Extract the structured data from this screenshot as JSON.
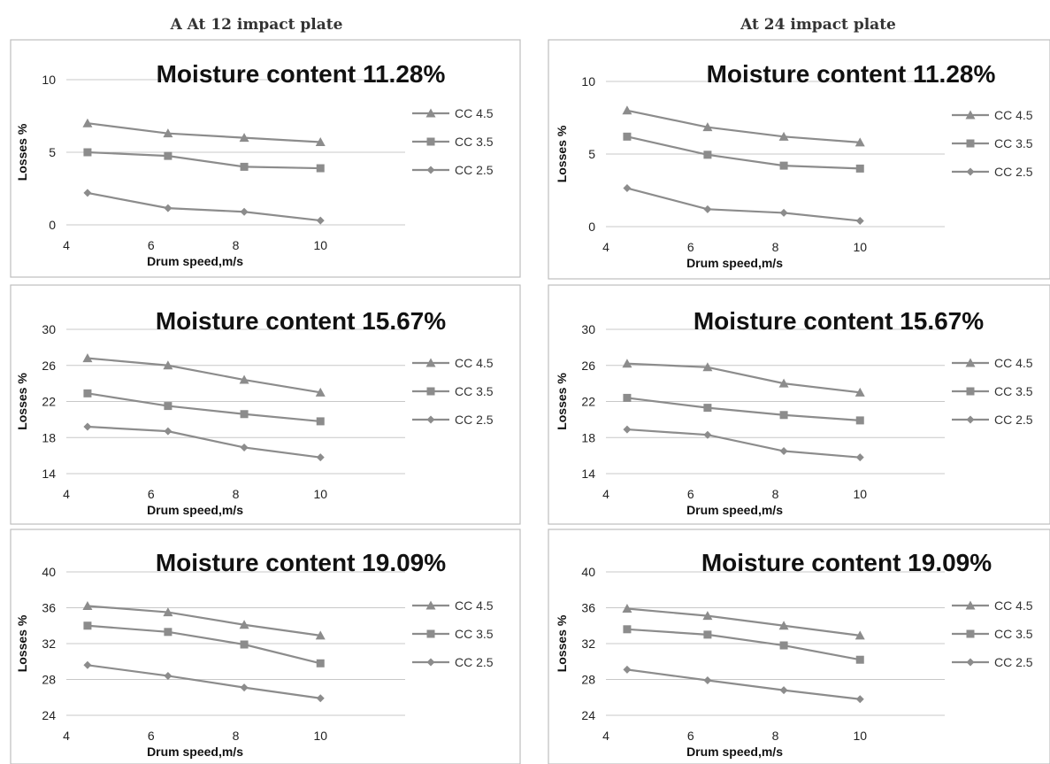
{
  "figure_columns": [
    {
      "title": "A At 12 impact plate"
    },
    {
      "title": "At 24 impact plate"
    }
  ],
  "chart_data": [
    {
      "type": "line",
      "title": "Moisture content 11.28%",
      "xlabel": "Drum speed,m/s",
      "ylabel": "Losses %",
      "xlim": [
        4,
        12
      ],
      "xticks": [
        "4",
        "6",
        "8",
        "10"
      ],
      "ylim": [
        0,
        10
      ],
      "yticks": [
        "0",
        "5",
        "10"
      ],
      "grid": true,
      "legend_position": "right",
      "x": [
        4.5,
        6.4,
        8.2,
        10.0
      ],
      "series": [
        {
          "name": "CC 4.5",
          "marker": "triangle",
          "values": [
            7.0,
            6.3,
            6.0,
            5.7
          ]
        },
        {
          "name": "CC 3.5",
          "marker": "square",
          "values": [
            5.0,
            4.75,
            4.0,
            3.9
          ]
        },
        {
          "name": "CC 2.5",
          "marker": "diamond",
          "values": [
            2.2,
            1.15,
            0.9,
            0.3
          ]
        }
      ]
    },
    {
      "type": "line",
      "title": "Moisture content 11.28%",
      "xlabel": "Drum speed,m/s",
      "ylabel": "Losses %",
      "xlim": [
        4,
        12
      ],
      "xticks": [
        "4",
        "6",
        "8",
        "10"
      ],
      "ylim": [
        0,
        10
      ],
      "yticks": [
        "0",
        "5",
        "10"
      ],
      "grid": true,
      "legend_position": "right",
      "x": [
        4.5,
        6.4,
        8.2,
        10.0
      ],
      "series": [
        {
          "name": "CC 4.5",
          "marker": "triangle",
          "values": [
            8.0,
            6.85,
            6.2,
            5.8
          ]
        },
        {
          "name": "CC 3.5",
          "marker": "square",
          "values": [
            6.2,
            4.95,
            4.2,
            4.0
          ]
        },
        {
          "name": "CC 2.5",
          "marker": "diamond",
          "values": [
            2.65,
            1.2,
            0.95,
            0.4
          ]
        }
      ]
    },
    {
      "type": "line",
      "title": "Moisture content 15.67%",
      "xlabel": "Drum speed,m/s",
      "ylabel": "Losses %",
      "xlim": [
        4,
        12
      ],
      "xticks": [
        "4",
        "6",
        "8",
        "10"
      ],
      "ylim": [
        14,
        30
      ],
      "yticks": [
        "14",
        "18",
        "22",
        "26",
        "30"
      ],
      "grid": true,
      "legend_position": "right",
      "x": [
        4.5,
        6.4,
        8.2,
        10.0
      ],
      "series": [
        {
          "name": "CC 4.5",
          "marker": "triangle",
          "values": [
            26.8,
            26.0,
            24.4,
            23.0
          ]
        },
        {
          "name": "CC 3.5",
          "marker": "square",
          "values": [
            22.9,
            21.5,
            20.6,
            19.8
          ]
        },
        {
          "name": "CC 2.5",
          "marker": "diamond",
          "values": [
            19.2,
            18.7,
            16.9,
            15.8
          ]
        }
      ]
    },
    {
      "type": "line",
      "title": "Moisture content 15.67%",
      "xlabel": "Drum speed,m/s",
      "ylabel": "Losses %",
      "xlim": [
        4,
        12
      ],
      "xticks": [
        "4",
        "6",
        "8",
        "10"
      ],
      "ylim": [
        14,
        30
      ],
      "yticks": [
        "14",
        "18",
        "22",
        "26",
        "30"
      ],
      "grid": true,
      "legend_position": "right",
      "x": [
        4.5,
        6.4,
        8.2,
        10.0
      ],
      "series": [
        {
          "name": "CC 4.5",
          "marker": "triangle",
          "values": [
            26.2,
            25.8,
            24.0,
            23.0
          ]
        },
        {
          "name": "CC 3.5",
          "marker": "square",
          "values": [
            22.4,
            21.3,
            20.5,
            19.9
          ]
        },
        {
          "name": "CC 2.5",
          "marker": "diamond",
          "values": [
            18.9,
            18.3,
            16.5,
            15.8
          ]
        }
      ]
    },
    {
      "type": "line",
      "title": "Moisture content 19.09%",
      "xlabel": "Drum speed,m/s",
      "ylabel": "Losses %",
      "xlim": [
        4,
        12
      ],
      "xticks": [
        "4",
        "6",
        "8",
        "10"
      ],
      "ylim": [
        24,
        40
      ],
      "yticks": [
        "24",
        "28",
        "32",
        "36",
        "40"
      ],
      "grid": true,
      "legend_position": "right",
      "x": [
        4.5,
        6.4,
        8.2,
        10.0
      ],
      "series": [
        {
          "name": "CC 4.5",
          "marker": "triangle",
          "values": [
            36.2,
            35.5,
            34.1,
            32.9
          ]
        },
        {
          "name": "CC 3.5",
          "marker": "square",
          "values": [
            34.0,
            33.3,
            31.9,
            29.8
          ]
        },
        {
          "name": "CC 2.5",
          "marker": "diamond",
          "values": [
            29.6,
            28.4,
            27.1,
            25.9
          ]
        }
      ]
    },
    {
      "type": "line",
      "title": "Moisture content 19.09%",
      "xlabel": "Drum speed,m/s",
      "ylabel": "Losses %",
      "xlim": [
        4,
        12
      ],
      "xticks": [
        "4",
        "6",
        "8",
        "10"
      ],
      "ylim": [
        24,
        40
      ],
      "yticks": [
        "24",
        "28",
        "32",
        "36",
        "40"
      ],
      "grid": true,
      "legend_position": "right",
      "x": [
        4.5,
        6.4,
        8.2,
        10.0
      ],
      "series": [
        {
          "name": "CC 4.5",
          "marker": "triangle",
          "values": [
            35.9,
            35.1,
            34.0,
            32.9
          ]
        },
        {
          "name": "CC 3.5",
          "marker": "square",
          "values": [
            33.6,
            33.0,
            31.8,
            30.2
          ]
        },
        {
          "name": "CC 2.5",
          "marker": "diamond",
          "values": [
            29.1,
            27.9,
            26.8,
            25.8
          ]
        }
      ]
    }
  ],
  "colors": {
    "line": "#8c8c8c",
    "grid": "#c8c8c8",
    "panel_border": "#bdbdbd",
    "text": "#222222"
  }
}
